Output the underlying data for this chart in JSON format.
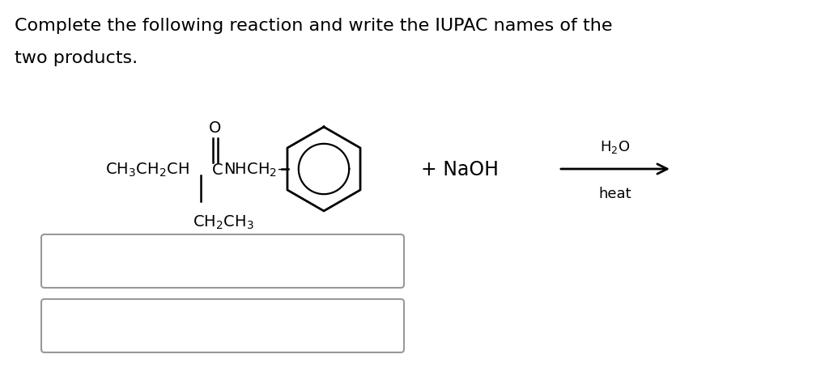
{
  "title_line1": "Complete the following reaction and write the IUPAC names of the",
  "title_line2": "two products.",
  "background_color": "#ffffff",
  "text_color": "#000000",
  "figsize": [
    10.24,
    4.6
  ],
  "dpi": 100,
  "formula_left": "CH$_3$CH$_2$CH",
  "formula_c": "C",
  "formula_right": "NHCH$_2$–",
  "carbonyl_o": "O",
  "side_chain": "CH$_2$CH$_3$",
  "plus_naoh": "+ NaOH",
  "h2o_label": "H$_2$O",
  "heat_label": "heat"
}
